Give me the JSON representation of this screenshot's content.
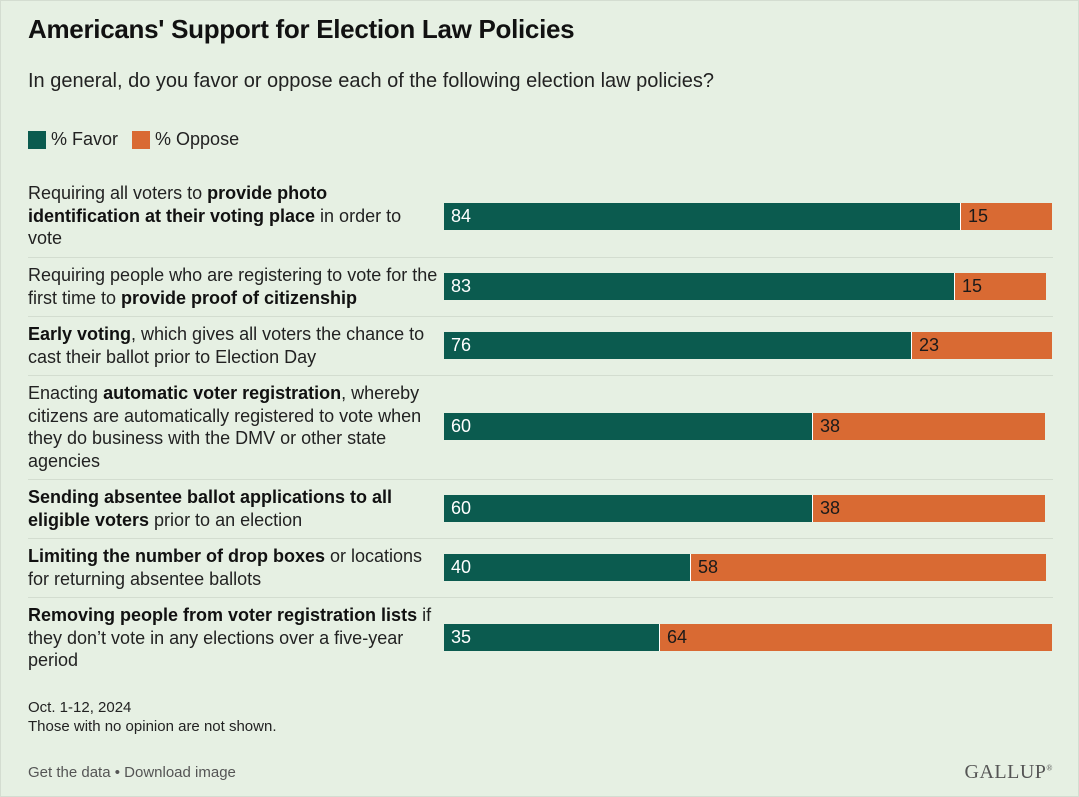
{
  "colors": {
    "favor": "#0b5b4f",
    "oppose": "#d96a33",
    "background": "#e6f0e3"
  },
  "chart_data": {
    "type": "bar",
    "orientation": "horizontal",
    "stacked": true,
    "title": "Americans' Support for Election Law Policies",
    "subtitle": "In general, do you favor or oppose each of the following election law policies?",
    "legend": {
      "placement": "top-left",
      "entries": [
        "% Favor",
        "% Oppose"
      ]
    },
    "categories": [
      [
        {
          "t": "Requiring all voters to ",
          "b": false
        },
        {
          "t": "provide photo identification at their voting place",
          "b": true
        },
        {
          "t": " in order to vote",
          "b": false
        }
      ],
      [
        {
          "t": "Requiring people who are registering to vote for the first time to ",
          "b": false
        },
        {
          "t": "provide proof of citizenship",
          "b": true
        }
      ],
      [
        {
          "t": "Early voting",
          "b": true
        },
        {
          "t": ", which gives all voters the chance to cast their ballot prior to Election Day",
          "b": false
        }
      ],
      [
        {
          "t": "Enacting ",
          "b": false
        },
        {
          "t": "automatic voter registration",
          "b": true
        },
        {
          "t": ", whereby citizens are automatically registered to vote when they do business with the DMV or other state agencies",
          "b": false
        }
      ],
      [
        {
          "t": "Sending absentee ballot applications to all eligible voters",
          "b": true
        },
        {
          "t": " prior to an election",
          "b": false
        }
      ],
      [
        {
          "t": "Limiting the number of drop boxes",
          "b": true
        },
        {
          "t": " or locations for returning absentee ballots",
          "b": false
        }
      ],
      [
        {
          "t": "Removing people from voter registration lists",
          "b": true
        },
        {
          "t": " if they don’t vote in any elections over a five-year period",
          "b": false
        }
      ]
    ],
    "series": [
      {
        "name": "% Favor",
        "values": [
          84,
          83,
          76,
          60,
          60,
          40,
          35
        ]
      },
      {
        "name": "% Oppose",
        "values": [
          15,
          15,
          23,
          38,
          38,
          58,
          64
        ]
      }
    ],
    "xlim": [
      0,
      100
    ],
    "grid": false
  },
  "notes": {
    "date": "Oct. 1-12, 2024",
    "no_opinion": "Those with no opinion are not shown."
  },
  "footer": {
    "get_data": "Get the data",
    "separator": " • ",
    "download": "Download image",
    "logo": "GALLUP"
  }
}
